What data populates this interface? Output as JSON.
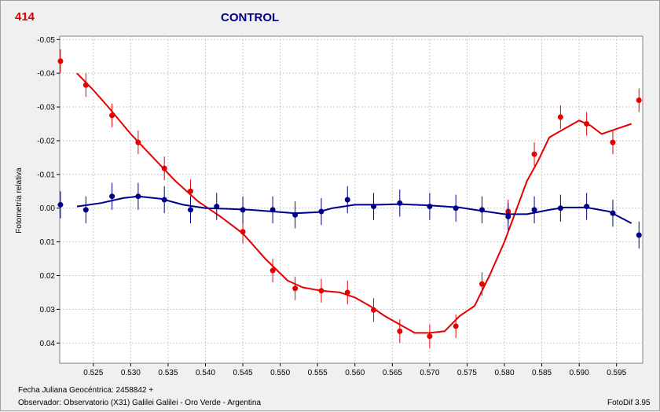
{
  "corner_label": "414",
  "footer": {
    "jd_label": "Fecha Juliana Geocéntrica: 2458842 +",
    "observer": "Observador: Observatorio (X31) Galilei Galilei - Oro Verde - Argentina",
    "software": "FotoDif 3.95"
  },
  "chart_data": {
    "type": "scatter",
    "title": "CONTROL",
    "xlabel": "",
    "ylabel": "Fotometría relativa",
    "xlim": [
      0.5205,
      0.5985
    ],
    "ylim": [
      -0.051,
      0.046
    ],
    "y_inverted": true,
    "grid": true,
    "x_ticks": [
      0.525,
      0.53,
      0.535,
      0.54,
      0.545,
      0.55,
      0.555,
      0.56,
      0.565,
      0.57,
      0.575,
      0.58,
      0.585,
      0.59,
      0.595
    ],
    "x_tick_labels": [
      "0.525",
      "0.530",
      "0.535",
      "0.540",
      "0.545",
      "0.550",
      "0.555",
      "0.560",
      "0.565",
      "0.570",
      "0.575",
      "0.580",
      "0.585",
      "0.590",
      "0.595"
    ],
    "y_ticks": [
      -0.05,
      -0.04,
      -0.03,
      -0.02,
      -0.01,
      0.0,
      0.01,
      0.02,
      0.03,
      0.04
    ],
    "y_tick_labels": [
      "-0.05",
      "-0.04",
      "-0.03",
      "-0.02",
      "-0.01",
      "0.00",
      "0.01",
      "0.02",
      "0.03",
      "0.04"
    ],
    "series": [
      {
        "color": "#e60000",
        "points": [
          {
            "x": 0.5206,
            "y": -0.0436,
            "err": 0.0035
          },
          {
            "x": 0.524,
            "y": -0.0365,
            "err": 0.0035
          },
          {
            "x": 0.5275,
            "y": -0.0275,
            "err": 0.0035
          },
          {
            "x": 0.531,
            "y": -0.0195,
            "err": 0.0035
          },
          {
            "x": 0.5345,
            "y": -0.0118,
            "err": 0.0035
          },
          {
            "x": 0.538,
            "y": -0.005,
            "err": 0.0035
          },
          {
            "x": 0.545,
            "y": 0.007,
            "err": 0.0035
          },
          {
            "x": 0.549,
            "y": 0.0185,
            "err": 0.0035
          },
          {
            "x": 0.552,
            "y": 0.0238,
            "err": 0.0035
          },
          {
            "x": 0.5555,
            "y": 0.0245,
            "err": 0.0035
          },
          {
            "x": 0.559,
            "y": 0.025,
            "err": 0.0035
          },
          {
            "x": 0.5625,
            "y": 0.0302,
            "err": 0.0035
          },
          {
            "x": 0.566,
            "y": 0.0365,
            "err": 0.0035
          },
          {
            "x": 0.57,
            "y": 0.038,
            "err": 0.0035
          },
          {
            "x": 0.5735,
            "y": 0.035,
            "err": 0.0035
          },
          {
            "x": 0.577,
            "y": 0.0225,
            "err": 0.0035
          },
          {
            "x": 0.5805,
            "y": 0.001,
            "err": 0.0035
          },
          {
            "x": 0.584,
            "y": -0.016,
            "err": 0.0035
          },
          {
            "x": 0.5875,
            "y": -0.027,
            "err": 0.0035
          },
          {
            "x": 0.591,
            "y": -0.025,
            "err": 0.0035
          },
          {
            "x": 0.5945,
            "y": -0.0195,
            "err": 0.0035
          },
          {
            "x": 0.598,
            "y": -0.032,
            "err": 0.0035
          }
        ],
        "fit": [
          [
            0.5228,
            -0.04
          ],
          [
            0.525,
            -0.035
          ],
          [
            0.527,
            -0.03
          ],
          [
            0.53,
            -0.022
          ],
          [
            0.533,
            -0.015
          ],
          [
            0.536,
            -0.008
          ],
          [
            0.539,
            -0.002
          ],
          [
            0.542,
            0.0025
          ],
          [
            0.545,
            0.0075
          ],
          [
            0.548,
            0.015
          ],
          [
            0.551,
            0.0215
          ],
          [
            0.553,
            0.0235
          ],
          [
            0.5555,
            0.0245
          ],
          [
            0.558,
            0.025
          ],
          [
            0.56,
            0.0265
          ],
          [
            0.562,
            0.029
          ],
          [
            0.564,
            0.032
          ],
          [
            0.566,
            0.0345
          ],
          [
            0.568,
            0.037
          ],
          [
            0.57,
            0.037
          ],
          [
            0.572,
            0.0365
          ],
          [
            0.574,
            0.032
          ],
          [
            0.576,
            0.029
          ],
          [
            0.578,
            0.02
          ],
          [
            0.58,
            0.01
          ],
          [
            0.5815,
            0.001
          ],
          [
            0.583,
            -0.008
          ],
          [
            0.5845,
            -0.014
          ],
          [
            0.586,
            -0.021
          ],
          [
            0.588,
            -0.0235
          ],
          [
            0.59,
            -0.026
          ],
          [
            0.5915,
            -0.0245
          ],
          [
            0.593,
            -0.022
          ],
          [
            0.595,
            -0.0235
          ],
          [
            0.597,
            -0.025
          ]
        ]
      },
      {
        "color": "#00008b",
        "points": [
          {
            "x": 0.5206,
            "y": -0.001,
            "err": 0.004
          },
          {
            "x": 0.524,
            "y": 0.0005,
            "err": 0.004
          },
          {
            "x": 0.5275,
            "y": -0.0035,
            "err": 0.004
          },
          {
            "x": 0.531,
            "y": -0.0035,
            "err": 0.004
          },
          {
            "x": 0.5345,
            "y": -0.0025,
            "err": 0.004
          },
          {
            "x": 0.538,
            "y": 0.0005,
            "err": 0.004
          },
          {
            "x": 0.5415,
            "y": -0.0005,
            "err": 0.004
          },
          {
            "x": 0.545,
            "y": 0.0005,
            "err": 0.004
          },
          {
            "x": 0.549,
            "y": 0.0005,
            "err": 0.004
          },
          {
            "x": 0.552,
            "y": 0.002,
            "err": 0.004
          },
          {
            "x": 0.5555,
            "y": 0.001,
            "err": 0.004
          },
          {
            "x": 0.559,
            "y": -0.0025,
            "err": 0.004
          },
          {
            "x": 0.5625,
            "y": -0.0005,
            "err": 0.004
          },
          {
            "x": 0.566,
            "y": -0.0015,
            "err": 0.004
          },
          {
            "x": 0.57,
            "y": -0.0005,
            "err": 0.004
          },
          {
            "x": 0.5735,
            "y": 0.0,
            "err": 0.004
          },
          {
            "x": 0.577,
            "y": 0.0005,
            "err": 0.004
          },
          {
            "x": 0.5805,
            "y": 0.0025,
            "err": 0.004
          },
          {
            "x": 0.584,
            "y": 0.0005,
            "err": 0.004
          },
          {
            "x": 0.5875,
            "y": 0.0,
            "err": 0.004
          },
          {
            "x": 0.591,
            "y": -0.0005,
            "err": 0.004
          },
          {
            "x": 0.5945,
            "y": 0.0015,
            "err": 0.004
          },
          {
            "x": 0.598,
            "y": 0.008,
            "err": 0.004
          }
        ],
        "fit": [
          [
            0.5228,
            -0.0005
          ],
          [
            0.526,
            -0.0015
          ],
          [
            0.529,
            -0.003
          ],
          [
            0.531,
            -0.0035
          ],
          [
            0.534,
            -0.0028
          ],
          [
            0.537,
            -0.001
          ],
          [
            0.54,
            0.0
          ],
          [
            0.543,
            0.0002
          ],
          [
            0.546,
            0.0005
          ],
          [
            0.549,
            0.001
          ],
          [
            0.552,
            0.0015
          ],
          [
            0.555,
            0.0012
          ],
          [
            0.557,
            0.0
          ],
          [
            0.56,
            -0.001
          ],
          [
            0.563,
            -0.001
          ],
          [
            0.566,
            -0.0012
          ],
          [
            0.57,
            -0.0008
          ],
          [
            0.574,
            -0.0002
          ],
          [
            0.577,
            0.0008
          ],
          [
            0.58,
            0.0018
          ],
          [
            0.583,
            0.0018
          ],
          [
            0.586,
            0.0005
          ],
          [
            0.588,
            -0.0002
          ],
          [
            0.591,
            -0.0002
          ],
          [
            0.594,
            0.001
          ],
          [
            0.597,
            0.0045
          ]
        ]
      }
    ]
  }
}
